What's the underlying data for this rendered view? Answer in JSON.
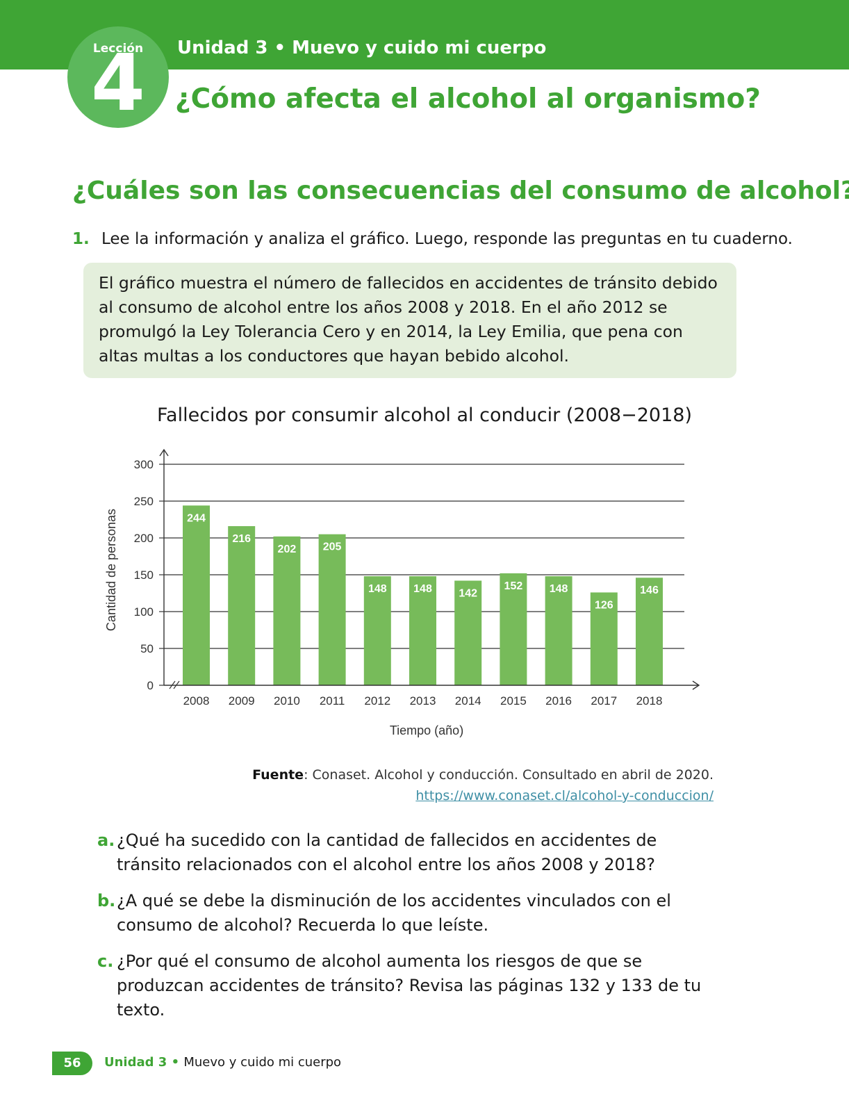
{
  "header": {
    "lesson_word": "Lección",
    "lesson_number": "4",
    "unit": "Unidad 3 • Muevo y cuido mi cuerpo",
    "lesson_title": "¿Cómo afecta el alcohol al organismo?"
  },
  "section": {
    "title": "¿Cuáles son las consecuencias del consumo de alcohol?"
  },
  "activity": {
    "number": "1.",
    "instruction": "Lee la información y analiza el gráfico. Luego, responde las preguntas en tu cuaderno."
  },
  "info_box": {
    "text": "El gráfico muestra el número de fallecidos en accidentes de tránsito debido al consumo de alcohol entre los años 2008 y 2018. En el año 2012 se promulgó la Ley Tolerancia Cero y en 2014, la Ley Emilia, que pena con altas multas a los conductores que hayan bebido alcohol."
  },
  "chart_data": {
    "type": "bar",
    "title": "Fallecidos por consumir alcohol al conducir (2008−2018)",
    "xlabel": "Tiempo (año)",
    "ylabel": "Cantidad de personas",
    "categories": [
      "2008",
      "2009",
      "2010",
      "2011",
      "2012",
      "2013",
      "2014",
      "2015",
      "2016",
      "2017",
      "2018"
    ],
    "values": [
      244,
      216,
      202,
      205,
      148,
      148,
      142,
      152,
      148,
      126,
      146
    ],
    "ylim": [
      0,
      300
    ],
    "yticks": [
      0,
      50,
      100,
      150,
      200,
      250,
      300
    ],
    "grid": true,
    "bar_color": "#77bb5a",
    "label_color": "#ffffff"
  },
  "source": {
    "label": "Fuente",
    "text": ": Conaset. Alcohol y conducción. Consultado en abril de 2020.",
    "url": "https://www.conaset.cl/alcohol-y-conduccion/"
  },
  "questions": [
    {
      "letter": "a.",
      "text": "¿Qué ha sucedido con la cantidad de fallecidos en accidentes de tránsito relacionados con el alcohol entre los años 2008 y 2018?"
    },
    {
      "letter": "b.",
      "text": "¿A qué se debe la disminución de los accidentes vinculados con el consumo de alcohol? Recuerda lo que leíste."
    },
    {
      "letter": "c.",
      "text_before": "¿Por qué el consumo de alcohol aumenta los riesgos de que se produzcan accidentes de tránsito? Revisa las ",
      "bold1": "páginas 132",
      "middle": " y ",
      "bold2": "133",
      "text_after": " de tu texto."
    }
  ],
  "footer": {
    "page_number": "56",
    "unit": "Unidad 3",
    "separator": " • ",
    "unit_title": "Muevo y cuido mi cuerpo"
  },
  "colors": {
    "primary_green": "#3fa535",
    "info_box_bg": "#e4efdc"
  }
}
